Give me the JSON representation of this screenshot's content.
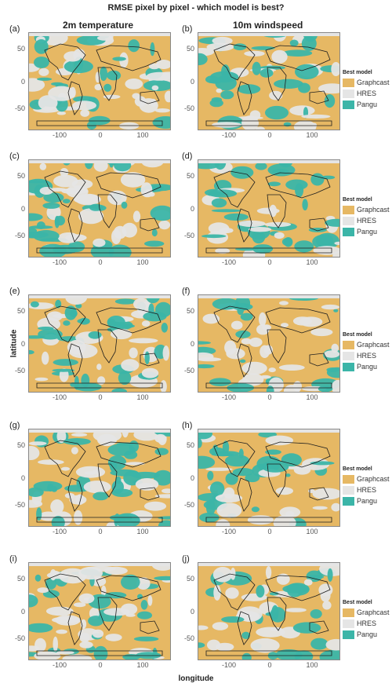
{
  "title": "RMSE pixel by pixel - which model is best?",
  "columns": [
    "2m temperature",
    "10m windspeed"
  ],
  "axes": {
    "xlabel": "longitude",
    "ylabel": "latitude",
    "xticks": [
      "-100",
      "0",
      "100"
    ],
    "yticks": [
      "50",
      "0",
      "-50"
    ]
  },
  "legend": {
    "title": "Best model",
    "items": [
      {
        "label": "Graphcast",
        "color": "#e6b864"
      },
      {
        "label": "HRES",
        "color": "#e5e5e5"
      },
      {
        "label": "Pangu",
        "color": "#3bb5a8"
      }
    ]
  },
  "panels": [
    {
      "label": "(a)"
    },
    {
      "label": "(b)"
    },
    {
      "label": "(c)"
    },
    {
      "label": "(d)"
    },
    {
      "label": "(e)"
    },
    {
      "label": "(f)"
    },
    {
      "label": "(g)"
    },
    {
      "label": "(h)"
    },
    {
      "label": "(i)"
    },
    {
      "label": "(j)"
    }
  ]
}
